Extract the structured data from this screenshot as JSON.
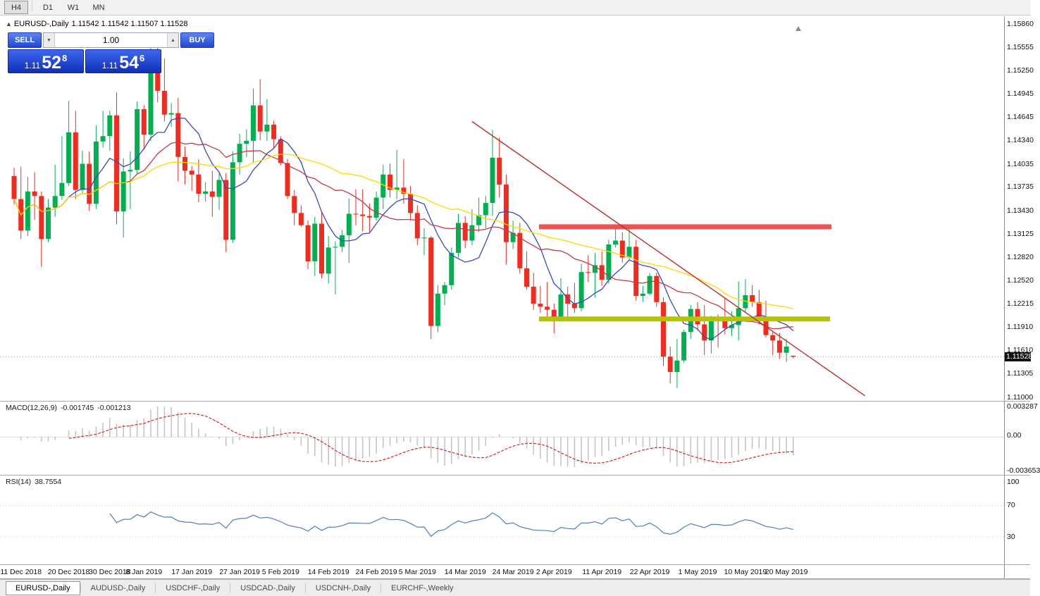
{
  "toolbar": {
    "timeframes": [
      {
        "label": "H4",
        "active": true
      },
      {
        "label": "D1",
        "active": false
      },
      {
        "label": "W1",
        "active": false
      },
      {
        "label": "MN",
        "active": false
      }
    ]
  },
  "chart_header": {
    "symbol_period": "EURUSD-,Daily",
    "ohlc": "1.11542 1.11542 1.11507 1.11528"
  },
  "trade_panel": {
    "sell_label": "SELL",
    "buy_label": "BUY",
    "volume": "1.00",
    "sell_price": {
      "prefix": "1.11",
      "pips": "52",
      "pipette": "8"
    },
    "buy_price": {
      "prefix": "1.11",
      "pips": "54",
      "pipette": "6"
    }
  },
  "price_scale": {
    "labels": [
      "1.15860",
      "1.15555",
      "1.15250",
      "1.14945",
      "1.14645",
      "1.14340",
      "1.14035",
      "1.13735",
      "1.13430",
      "1.13125",
      "1.12820",
      "1.12520",
      "1.12215",
      "1.11910",
      "1.11610",
      "1.11305",
      "1.11000"
    ],
    "current_tag": "1.11528"
  },
  "macd_panel": {
    "label": "MACD(12,26,9)",
    "main_value": "-0.001745",
    "signal_value": "-0.001213",
    "scale_top": "0.003287",
    "scale_mid": "0.00",
    "scale_bottom": "-0.003653",
    "fast": 12,
    "slow": 26,
    "signal": 9,
    "histogram_color": "#c4c4c4",
    "signal_color": "#d81414"
  },
  "rsi_panel": {
    "label": "RSI(14)",
    "value": "38.7554",
    "period": 14,
    "scale_labels": [
      100,
      70,
      30
    ],
    "level_lines": [
      70,
      30
    ],
    "line_color": "#4c80c0"
  },
  "tabs": [
    {
      "label": "EURUSD-,Daily",
      "active": true
    },
    {
      "label": "AUDUSD-,Daily",
      "active": false
    },
    {
      "label": "USDCHF-,Daily",
      "active": false
    },
    {
      "label": "USDCAD-,Daily",
      "active": false
    },
    {
      "label": "USDCNH-,Daily",
      "active": false
    },
    {
      "label": "EURCHF-,Weekly",
      "active": false
    }
  ],
  "chart_data": {
    "type": "candlestick",
    "symbol": "EURUSD",
    "timeframe": "Daily",
    "ohlc_current": {
      "open": 1.11542,
      "high": 1.11542,
      "low": 1.11507,
      "close": 1.11528
    },
    "current_price": 1.11528,
    "y_range": [
      1.11,
      1.1586
    ],
    "colors": {
      "bull": "#00b050",
      "bear": "#f32b1e"
    },
    "candles": [
      [
        1.1388,
        1.1399,
        1.1351,
        1.1358
      ],
      [
        1.1358,
        1.14,
        1.1306,
        1.1317
      ],
      [
        1.1317,
        1.1387,
        1.131,
        1.1368
      ],
      [
        1.1368,
        1.1393,
        1.1331,
        1.1362
      ],
      [
        1.1362,
        1.1368,
        1.127,
        1.1306
      ],
      [
        1.1306,
        1.1358,
        1.1302,
        1.1347
      ],
      [
        1.1347,
        1.1403,
        1.1335,
        1.1362
      ],
      [
        1.1362,
        1.144,
        1.1357,
        1.1379
      ],
      [
        1.1379,
        1.1486,
        1.1375,
        1.1445
      ],
      [
        1.1445,
        1.1473,
        1.1358,
        1.137
      ],
      [
        1.137,
        1.1421,
        1.1365,
        1.1404
      ],
      [
        1.1404,
        1.142,
        1.1343,
        1.1352
      ],
      [
        1.1352,
        1.1454,
        1.1345,
        1.1433
      ],
      [
        1.1433,
        1.1473,
        1.1425,
        1.144
      ],
      [
        1.144,
        1.1473,
        1.1421,
        1.1467
      ],
      [
        1.1467,
        1.1497,
        1.1325,
        1.1342
      ],
      [
        1.1342,
        1.1411,
        1.1308,
        1.1394
      ],
      [
        1.1394,
        1.142,
        1.1345,
        1.1396
      ],
      [
        1.1396,
        1.1485,
        1.139,
        1.1475
      ],
      [
        1.1475,
        1.148,
        1.1422,
        1.1442
      ],
      [
        1.1442,
        1.157,
        1.1434,
        1.1544
      ],
      [
        1.1544,
        1.1555,
        1.1484,
        1.1499
      ],
      [
        1.1499,
        1.1541,
        1.1459,
        1.1468
      ],
      [
        1.1468,
        1.1483,
        1.1452,
        1.147
      ],
      [
        1.147,
        1.149,
        1.1381,
        1.1413
      ],
      [
        1.1413,
        1.1426,
        1.1377,
        1.1395
      ],
      [
        1.1395,
        1.1401,
        1.1369,
        1.139
      ],
      [
        1.139,
        1.141,
        1.1354,
        1.1365
      ],
      [
        1.1365,
        1.138,
        1.1355,
        1.1368
      ],
      [
        1.1368,
        1.1395,
        1.1335,
        1.1361
      ],
      [
        1.1361,
        1.1394,
        1.1344,
        1.1383
      ],
      [
        1.1383,
        1.1392,
        1.1289,
        1.1305
      ],
      [
        1.1305,
        1.142,
        1.1301,
        1.1406
      ],
      [
        1.1406,
        1.1443,
        1.139,
        1.143
      ],
      [
        1.143,
        1.1449,
        1.1413,
        1.1434
      ],
      [
        1.1434,
        1.1502,
        1.1405,
        1.148
      ],
      [
        1.148,
        1.1514,
        1.1435,
        1.1446
      ],
      [
        1.1446,
        1.1488,
        1.1434,
        1.1455
      ],
      [
        1.1455,
        1.146,
        1.1424,
        1.1436
      ],
      [
        1.1436,
        1.144,
        1.1402,
        1.1405
      ],
      [
        1.1405,
        1.141,
        1.1358,
        1.1362
      ],
      [
        1.1362,
        1.137,
        1.1324,
        1.134
      ],
      [
        1.134,
        1.135,
        1.1322,
        1.1324
      ],
      [
        1.1324,
        1.133,
        1.1267,
        1.1277
      ],
      [
        1.1277,
        1.1335,
        1.1258,
        1.1326
      ],
      [
        1.1326,
        1.1341,
        1.1255,
        1.1261
      ],
      [
        1.1261,
        1.131,
        1.1248,
        1.1295
      ],
      [
        1.1295,
        1.1303,
        1.1234,
        1.1296
      ],
      [
        1.1296,
        1.1318,
        1.1289,
        1.1311
      ],
      [
        1.1311,
        1.1359,
        1.1275,
        1.1339
      ],
      [
        1.1339,
        1.1371,
        1.1324,
        1.1338
      ],
      [
        1.1338,
        1.1371,
        1.1316,
        1.1336
      ],
      [
        1.1336,
        1.1352,
        1.1315,
        1.1334
      ],
      [
        1.1334,
        1.1368,
        1.133,
        1.136
      ],
      [
        1.136,
        1.1403,
        1.1345,
        1.139
      ],
      [
        1.139,
        1.1404,
        1.136,
        1.137
      ],
      [
        1.137,
        1.1422,
        1.1358,
        1.1373
      ],
      [
        1.1373,
        1.141,
        1.1352,
        1.1365
      ],
      [
        1.1365,
        1.1375,
        1.133,
        1.134
      ],
      [
        1.134,
        1.135,
        1.1298,
        1.1307
      ],
      [
        1.1307,
        1.132,
        1.1285,
        1.1308
      ],
      [
        1.1308,
        1.131,
        1.1176,
        1.1193
      ],
      [
        1.1193,
        1.1246,
        1.1185,
        1.1235
      ],
      [
        1.1235,
        1.125,
        1.122,
        1.1246
      ],
      [
        1.1246,
        1.1295,
        1.124,
        1.1288
      ],
      [
        1.1288,
        1.1339,
        1.1282,
        1.1327
      ],
      [
        1.1327,
        1.1336,
        1.1294,
        1.1304
      ],
      [
        1.1304,
        1.1345,
        1.1298,
        1.1324
      ],
      [
        1.1324,
        1.136,
        1.1315,
        1.1337
      ],
      [
        1.1337,
        1.1362,
        1.132,
        1.1353
      ],
      [
        1.1353,
        1.1448,
        1.1336,
        1.1412
      ],
      [
        1.1412,
        1.1438,
        1.136,
        1.1377
      ],
      [
        1.1377,
        1.139,
        1.1273,
        1.1302
      ],
      [
        1.1302,
        1.133,
        1.1293,
        1.1314
      ],
      [
        1.1314,
        1.1327,
        1.1261,
        1.1268
      ],
      [
        1.1268,
        1.129,
        1.124,
        1.1244
      ],
      [
        1.1244,
        1.1262,
        1.1214,
        1.1222
      ],
      [
        1.1222,
        1.1245,
        1.121,
        1.1218
      ],
      [
        1.1218,
        1.125,
        1.1205,
        1.1214
      ],
      [
        1.1214,
        1.1222,
        1.1183,
        1.1203
      ],
      [
        1.1203,
        1.1255,
        1.12,
        1.1234
      ],
      [
        1.1234,
        1.1244,
        1.1205,
        1.1222
      ],
      [
        1.1222,
        1.1249,
        1.121,
        1.1216
      ],
      [
        1.1216,
        1.1274,
        1.1212,
        1.1263
      ],
      [
        1.1263,
        1.1285,
        1.125,
        1.1262
      ],
      [
        1.1262,
        1.1288,
        1.123,
        1.1272
      ],
      [
        1.1272,
        1.129,
        1.1245,
        1.1253
      ],
      [
        1.1253,
        1.1305,
        1.1248,
        1.1299
      ],
      [
        1.1299,
        1.132,
        1.1295,
        1.1304
      ],
      [
        1.1304,
        1.1315,
        1.1275,
        1.1282
      ],
      [
        1.1282,
        1.1324,
        1.128,
        1.1296
      ],
      [
        1.1296,
        1.1305,
        1.1226,
        1.1232
      ],
      [
        1.1232,
        1.1245,
        1.1224,
        1.1235
      ],
      [
        1.1235,
        1.1262,
        1.1233,
        1.1258
      ],
      [
        1.1258,
        1.1262,
        1.1218,
        1.1224
      ],
      [
        1.1224,
        1.123,
        1.1141,
        1.1153
      ],
      [
        1.1153,
        1.1166,
        1.1118,
        1.1133
      ],
      [
        1.1133,
        1.1176,
        1.1112,
        1.1148
      ],
      [
        1.1148,
        1.1188,
        1.1145,
        1.1185
      ],
      [
        1.1185,
        1.122,
        1.1176,
        1.1215
      ],
      [
        1.1215,
        1.1224,
        1.1187,
        1.1195
      ],
      [
        1.1195,
        1.122,
        1.1155,
        1.1174
      ],
      [
        1.1174,
        1.1206,
        1.1157,
        1.12
      ],
      [
        1.12,
        1.1208,
        1.1165,
        1.1199
      ],
      [
        1.1199,
        1.123,
        1.1182,
        1.119
      ],
      [
        1.119,
        1.1212,
        1.118,
        1.1194
      ],
      [
        1.1194,
        1.1251,
        1.1174,
        1.1216
      ],
      [
        1.1216,
        1.1254,
        1.121,
        1.1233
      ],
      [
        1.1233,
        1.1246,
        1.1218,
        1.1224
      ],
      [
        1.1224,
        1.124,
        1.1195,
        1.1204
      ],
      [
        1.1204,
        1.1226,
        1.1178,
        1.1181
      ],
      [
        1.1181,
        1.1185,
        1.1155,
        1.1174
      ],
      [
        1.1174,
        1.1184,
        1.115,
        1.1158
      ],
      [
        1.1158,
        1.1176,
        1.1146,
        1.1166
      ],
      [
        1.11542,
        1.11542,
        1.11507,
        1.11528
      ]
    ],
    "date_axis": [
      {
        "label": "11 Dec 2018",
        "i": 1
      },
      {
        "label": "20 Dec 2018",
        "i": 8
      },
      {
        "label": "30 Dec 2018",
        "i": 14
      },
      {
        "label": "8 Jan 2019",
        "i": 19
      },
      {
        "label": "17 Jan 2019",
        "i": 26
      },
      {
        "label": "27 Jan 2019",
        "i": 33
      },
      {
        "label": "5 Feb 2019",
        "i": 39
      },
      {
        "label": "14 Feb 2019",
        "i": 46
      },
      {
        "label": "24 Feb 2019",
        "i": 53
      },
      {
        "label": "5 Mar 2019",
        "i": 59
      },
      {
        "label": "14 Mar 2019",
        "i": 66
      },
      {
        "label": "24 Mar 2019",
        "i": 73
      },
      {
        "label": "2 Apr 2019",
        "i": 79
      },
      {
        "label": "11 Apr 2019",
        "i": 86
      },
      {
        "label": "22 Apr 2019",
        "i": 93
      },
      {
        "label": "1 May 2019",
        "i": 100
      },
      {
        "label": "10 May 2019",
        "i": 107
      },
      {
        "label": "20 May 2019",
        "i": 113
      }
    ],
    "moving_averages": [
      {
        "period": 8,
        "color": "#3748c0"
      },
      {
        "period": 17,
        "color": "#c33a4a"
      },
      {
        "period": 34,
        "color": "#ffd900"
      }
    ],
    "objects": {
      "resistance_line": {
        "price": 1.1322,
        "i1": 76.8,
        "i2": 119.6,
        "color": "#ef5350",
        "width": 7
      },
      "support_line": {
        "price": 1.1202,
        "i1": 76.8,
        "i2": 119.4,
        "color": "#b4c400",
        "width": 7
      },
      "trendline": {
        "i1": 67,
        "p1": 1.1459,
        "i2": 124.5,
        "p2": 1.1102,
        "color": "#bf2e26",
        "width": 1.4
      }
    }
  }
}
